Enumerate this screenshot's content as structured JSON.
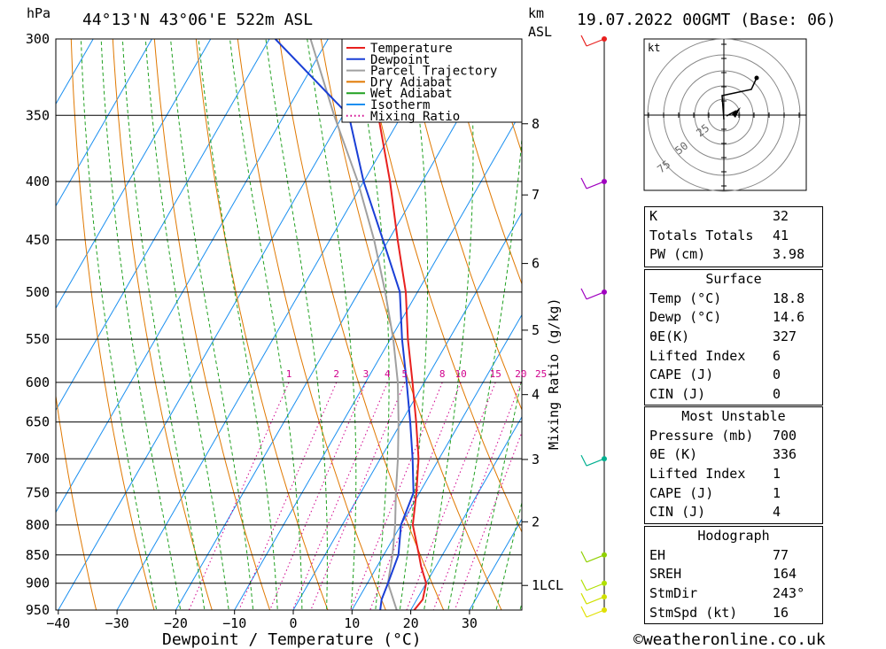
{
  "header": {
    "hpa_label": "hPa",
    "location": "44°13'N  43°06'E  522m  ASL",
    "km_label": "km",
    "asl_label": "ASL",
    "datetime": "19.07.2022  00GMT  (Base: 06)"
  },
  "chart_data": {
    "type": "skew-t",
    "xlabel": "Dewpoint / Temperature (°C)",
    "ylabel_left": "hPa",
    "ylabel_right": "Mixing Ratio (g/kg)",
    "pressure_levels": [
      300,
      350,
      400,
      450,
      500,
      550,
      600,
      650,
      700,
      750,
      800,
      850,
      900,
      950
    ],
    "pressure_labels": [
      "300",
      "350",
      "400",
      "450",
      "500",
      "550",
      "600",
      "650",
      "700",
      "750",
      "800",
      "850",
      "900",
      "950"
    ],
    "temperature_ticks": [
      -40,
      -30,
      -20,
      -10,
      0,
      10,
      20,
      30
    ],
    "temperature_labels": [
      "−40",
      "−30",
      "−20",
      "−10",
      "0",
      "10",
      "20",
      "30"
    ],
    "km_ticks": [
      {
        "km": 1,
        "p": 904,
        "label": "1"
      },
      {
        "km": 2,
        "p": 795,
        "label": "2"
      },
      {
        "km": 3,
        "p": 701,
        "label": "3"
      },
      {
        "km": 4,
        "p": 615,
        "label": "4"
      },
      {
        "km": 5,
        "p": 540,
        "label": "5"
      },
      {
        "km": 6,
        "p": 472,
        "label": "6"
      },
      {
        "km": 7,
        "p": 411,
        "label": "7"
      },
      {
        "km": 8,
        "p": 356,
        "label": "8"
      }
    ],
    "lcl": {
      "p": 902,
      "label": "LCL"
    },
    "mixing_ratio_values": [
      1,
      2,
      3,
      4,
      5,
      8,
      10,
      15,
      20,
      25
    ],
    "mixing_ratio_labels": [
      "1",
      "2",
      "3",
      "4",
      "5",
      "8",
      "10",
      "15",
      "20",
      "25"
    ],
    "legend": [
      {
        "name": "Temperature",
        "color": "#e8201e",
        "style": "solid"
      },
      {
        "name": "Dewpoint",
        "color": "#1a3fd6",
        "style": "solid"
      },
      {
        "name": "Parcel Trajectory",
        "color": "#a0a0a0",
        "style": "solid"
      },
      {
        "name": "Dry Adiabat",
        "color": "#e07800",
        "style": "solid"
      },
      {
        "name": "Wet Adiabat",
        "color": "#20a020",
        "style": "solid"
      },
      {
        "name": "Isotherm",
        "color": "#1a8ff0",
        "style": "solid"
      },
      {
        "name": "Mixing Ratio",
        "color": "#d0008c",
        "style": "dotted"
      }
    ],
    "temperature": [
      {
        "p": 955,
        "t": 20.5
      },
      {
        "p": 930,
        "t": 21.0
      },
      {
        "p": 900,
        "t": 20.0
      },
      {
        "p": 870,
        "t": 17.5
      },
      {
        "p": 850,
        "t": 16.0
      },
      {
        "p": 800,
        "t": 12.0
      },
      {
        "p": 750,
        "t": 9.5
      },
      {
        "p": 700,
        "t": 6.5
      },
      {
        "p": 650,
        "t": 2.5
      },
      {
        "p": 600,
        "t": -2.0
      },
      {
        "p": 550,
        "t": -7.0
      },
      {
        "p": 500,
        "t": -12.0
      },
      {
        "p": 450,
        "t": -18.5
      },
      {
        "p": 400,
        "t": -25.5
      },
      {
        "p": 350,
        "t": -34.0
      },
      {
        "p": 300,
        "t": -44.0
      }
    ],
    "dewpoint": [
      {
        "p": 955,
        "t": 15.0
      },
      {
        "p": 930,
        "t": 14.0
      },
      {
        "p": 900,
        "t": 13.5
      },
      {
        "p": 850,
        "t": 12.5
      },
      {
        "p": 800,
        "t": 10.0
      },
      {
        "p": 750,
        "t": 9.0
      },
      {
        "p": 700,
        "t": 5.5
      },
      {
        "p": 650,
        "t": 1.5
      },
      {
        "p": 600,
        "t": -3.0
      },
      {
        "p": 550,
        "t": -8.0
      },
      {
        "p": 500,
        "t": -13.0
      },
      {
        "p": 450,
        "t": -21.0
      },
      {
        "p": 400,
        "t": -30.0
      },
      {
        "p": 350,
        "t": -39.0
      },
      {
        "p": 300,
        "t": -59.0
      }
    ],
    "parcel": [
      {
        "p": 955,
        "t": 18.0
      },
      {
        "p": 900,
        "t": 13.5
      },
      {
        "p": 850,
        "t": 11.5
      },
      {
        "p": 800,
        "t": 9.0
      },
      {
        "p": 750,
        "t": 6.0
      },
      {
        "p": 700,
        "t": 3.0
      },
      {
        "p": 650,
        "t": -0.5
      },
      {
        "p": 600,
        "t": -4.5
      },
      {
        "p": 550,
        "t": -9.5
      },
      {
        "p": 500,
        "t": -15.5
      },
      {
        "p": 450,
        "t": -22.5
      },
      {
        "p": 400,
        "t": -31.0
      },
      {
        "p": 350,
        "t": -41.5
      },
      {
        "p": 300,
        "t": -53.0
      }
    ],
    "wind_profile": [
      {
        "p": 300,
        "color": "#e8201e"
      },
      {
        "p": 400,
        "color": "#a000c0"
      },
      {
        "p": 500,
        "color": "#a000c0"
      },
      {
        "p": 700,
        "color": "#00b090"
      },
      {
        "p": 850,
        "color": "#90d000"
      },
      {
        "p": 900,
        "color": "#b0e000"
      },
      {
        "p": 925,
        "color": "#d0e000"
      },
      {
        "p": 950,
        "color": "#e0e000"
      }
    ],
    "hodograph": {
      "unit_label": "kt",
      "ring_labels": [
        "25",
        "50",
        "75"
      ]
    }
  },
  "stats": {
    "general": [
      {
        "label": "K",
        "value": "32"
      },
      {
        "label": "Totals Totals",
        "value": "41"
      },
      {
        "label": "PW (cm)",
        "value": "3.98"
      }
    ],
    "surface_title": "Surface",
    "surface": [
      {
        "label": "Temp (°C)",
        "value": "18.8"
      },
      {
        "label": "Dewp (°C)",
        "value": "14.6"
      },
      {
        "label": "θE(K)",
        "value": "327"
      },
      {
        "label": "Lifted Index",
        "value": "6"
      },
      {
        "label": "CAPE (J)",
        "value": "0"
      },
      {
        "label": "CIN (J)",
        "value": "0"
      }
    ],
    "unstable_title": "Most Unstable",
    "unstable": [
      {
        "label": "Pressure (mb)",
        "value": "700"
      },
      {
        "label": "θE (K)",
        "value": "336"
      },
      {
        "label": "Lifted Index",
        "value": "1"
      },
      {
        "label": "CAPE (J)",
        "value": "1"
      },
      {
        "label": "CIN (J)",
        "value": "4"
      }
    ],
    "hodo_title": "Hodograph",
    "hodo": [
      {
        "label": "EH",
        "value": "77"
      },
      {
        "label": "SREH",
        "value": "164"
      },
      {
        "label": "StmDir",
        "value": "243°"
      },
      {
        "label": "StmSpd (kt)",
        "value": "16"
      }
    ]
  },
  "footer": {
    "copyright": "©weatheronline.co.uk"
  }
}
